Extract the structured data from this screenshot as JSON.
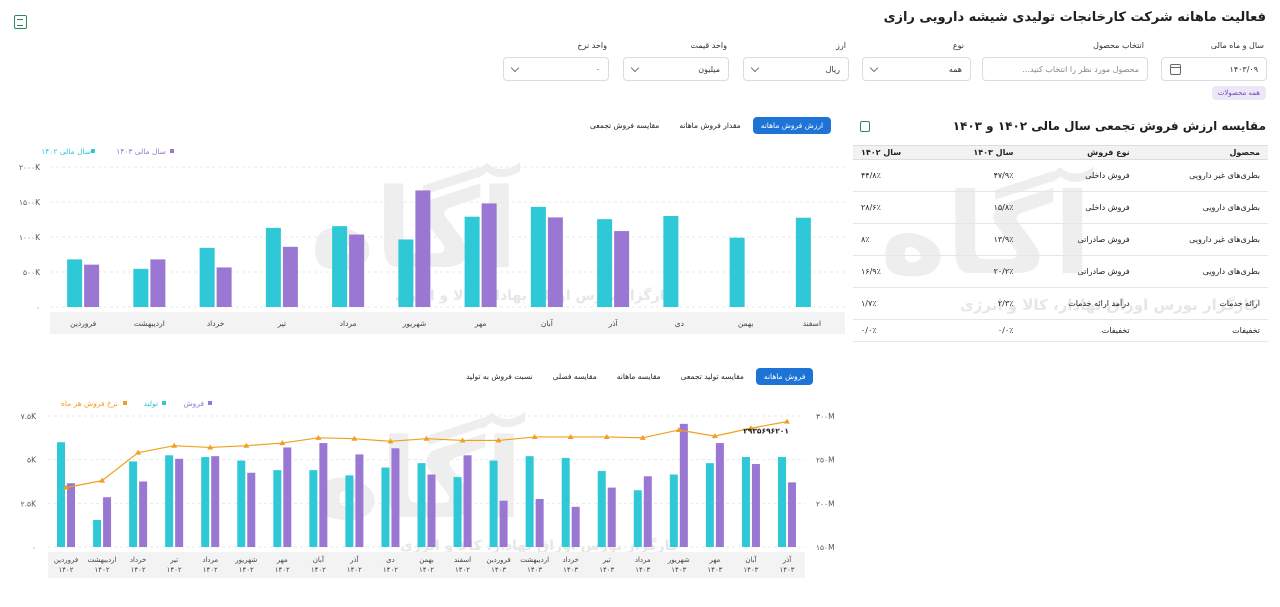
{
  "header": {
    "title": "فعالیت ماهانه شرکت کارخانجات تولیدی شیشه دارویی رازی"
  },
  "filters": {
    "year_month": {
      "label": "سال و ماه مالی",
      "value": "۱۴۰۳/۰۹"
    },
    "product": {
      "label": "انتخاب محصول",
      "placeholder": "محصول مورد نظر را انتخاب کنید..."
    },
    "type": {
      "label": "نوع",
      "value": "همه"
    },
    "currency": {
      "label": "ارز",
      "value": "ریال"
    },
    "price_unit": {
      "label": "واحد قیمت",
      "value": "میلیون"
    },
    "rate_unit": {
      "label": "واحد نرخ",
      "value": "۰"
    },
    "chip": "همه محصولات"
  },
  "watermark": {
    "logo": "آگاه",
    "tagline": "کارگزار بورس اوراق بهادار، کالا و انرژی"
  },
  "table_section": {
    "title": "مقایسه ارزش فروش تجمعی سال مالی ۱۴۰۲ و ۱۴۰۳",
    "columns": [
      "محصول",
      "نوع فروش",
      "سال ۱۴۰۳",
      "سال ۱۴۰۲"
    ],
    "rows": [
      [
        "بطری‌های غیر دارویی",
        "فروش داخلی",
        "۴۷/۹٪",
        "۴۴/۸٪"
      ],
      [
        "بطری‌های دارویی",
        "فروش داخلی",
        "۱۵/۸٪",
        "۲۸/۶٪"
      ],
      [
        "بطری‌های غیر دارویی",
        "فروش صادراتی",
        "۱۳/۹٪",
        "۸٪"
      ],
      [
        "بطری‌های دارویی",
        "فروش صادراتی",
        "۲۰/۲٪",
        "۱۶/۹٪"
      ],
      [
        "ارائه خدمات",
        "درآمد ارائه خدمات",
        "۲/۳٪",
        "۱/۷٪"
      ],
      [
        "تخفیفات",
        "تخفیفات",
        "۰/۰٪",
        "۰/۰٪"
      ]
    ]
  },
  "chart1": {
    "tabs": [
      "ارزش فروش ماهانه",
      "مقدار فروش ماهانه",
      "مقایسه فروش تجمعی"
    ],
    "active_tab": 0
  },
  "chart2": {
    "tabs": [
      "فروش ماهانه",
      "مقایسه تولید تجمعی",
      "مقایسه ماهانه",
      "مقایسه فصلی",
      "نسبت فروش به تولید"
    ],
    "active_tab": 0
  },
  "chart_data": [
    {
      "type": "bar",
      "title": "",
      "categories": [
        "فروردین",
        "اردیبهشت",
        "خرداد",
        "تیر",
        "مرداد",
        "شهریور",
        "مهر",
        "آبان",
        "آذر",
        "دی",
        "بهمن",
        "اسفند"
      ],
      "series": [
        {
          "name": "سال مالی ۱۴۰۲",
          "color": "#2ec8d6",
          "values": [
            680,
            545,
            845,
            1130,
            1155,
            965,
            1290,
            1430,
            1255,
            1300,
            990,
            1275
          ]
        },
        {
          "name": "سال مالی ۱۴۰۳",
          "color": "#9977d3",
          "values": [
            605,
            680,
            565,
            860,
            1035,
            1665,
            1480,
            1280,
            1085,
            null,
            null,
            null
          ]
        }
      ],
      "ylim": [
        0,
        2000
      ],
      "yticks": [
        "۰",
        "۵۰۰K",
        "۱۰۰۰K",
        "۱۵۰۰K",
        "۲۰۰۰K"
      ],
      "legend": "top-left"
    },
    {
      "type": "bar",
      "title": "",
      "categories": [
        "فروردین ۱۴۰۲",
        "اردیبهشت ۱۴۰۲",
        "خرداد ۱۴۰۲",
        "تیر ۱۴۰۲",
        "مرداد ۱۴۰۲",
        "شهریور ۱۴۰۲",
        "مهر ۱۴۰۲",
        "آبان ۱۴۰۲",
        "آذر ۱۴۰۲",
        "دی ۱۴۰۲",
        "بهمن ۱۴۰۲",
        "اسفند ۱۴۰۲",
        "فروردین ۱۴۰۳",
        "اردیبهشت ۱۴۰۳",
        "خرداد ۱۴۰۳",
        "تیر ۱۴۰۳",
        "مرداد ۱۴۰۳",
        "شهریور ۱۴۰۳",
        "مهر ۱۴۰۳",
        "آبان ۱۴۰۳",
        "آذر ۱۴۰۳"
      ],
      "series": [
        {
          "name": "تولید",
          "color": "#2ec8d6",
          "values": [
            6000,
            1550,
            4900,
            5250,
            5150,
            4950,
            4400,
            4400,
            4100,
            4550,
            4800,
            4000,
            4950,
            5200,
            5100,
            4350,
            3250,
            4150,
            4800,
            5150,
            5150
          ]
        },
        {
          "name": "فروش",
          "color": "#9977d3",
          "values": [
            3650,
            2850,
            3750,
            5050,
            5200,
            4250,
            5700,
            5950,
            5300,
            5650,
            4150,
            5250,
            2650,
            2750,
            2300,
            3400,
            4050,
            7050,
            5950,
            4750,
            3700
          ]
        },
        {
          "name": "نرخ فروش هر ماه",
          "type": "line",
          "color": "#f0a020",
          "values": [
            218,
            226,
            258,
            266,
            264,
            266,
            269,
            275,
            274,
            271,
            274,
            272,
            272,
            276,
            276,
            276,
            275,
            284,
            277,
            286,
            293.56
          ]
        }
      ],
      "ylim": [
        0,
        7500
      ],
      "y2lim": [
        150,
        300
      ],
      "yticks": [
        "۰",
        "۲.۵K",
        "۵K",
        "۷.۵K"
      ],
      "y2ticks": [
        "۱۵۰M",
        "۲۰۰M",
        "۲۵۰M",
        "۳۰۰M"
      ],
      "annotation": "۲۹۳۵۶۹۶۲۰۱",
      "legend": "top-left"
    }
  ]
}
